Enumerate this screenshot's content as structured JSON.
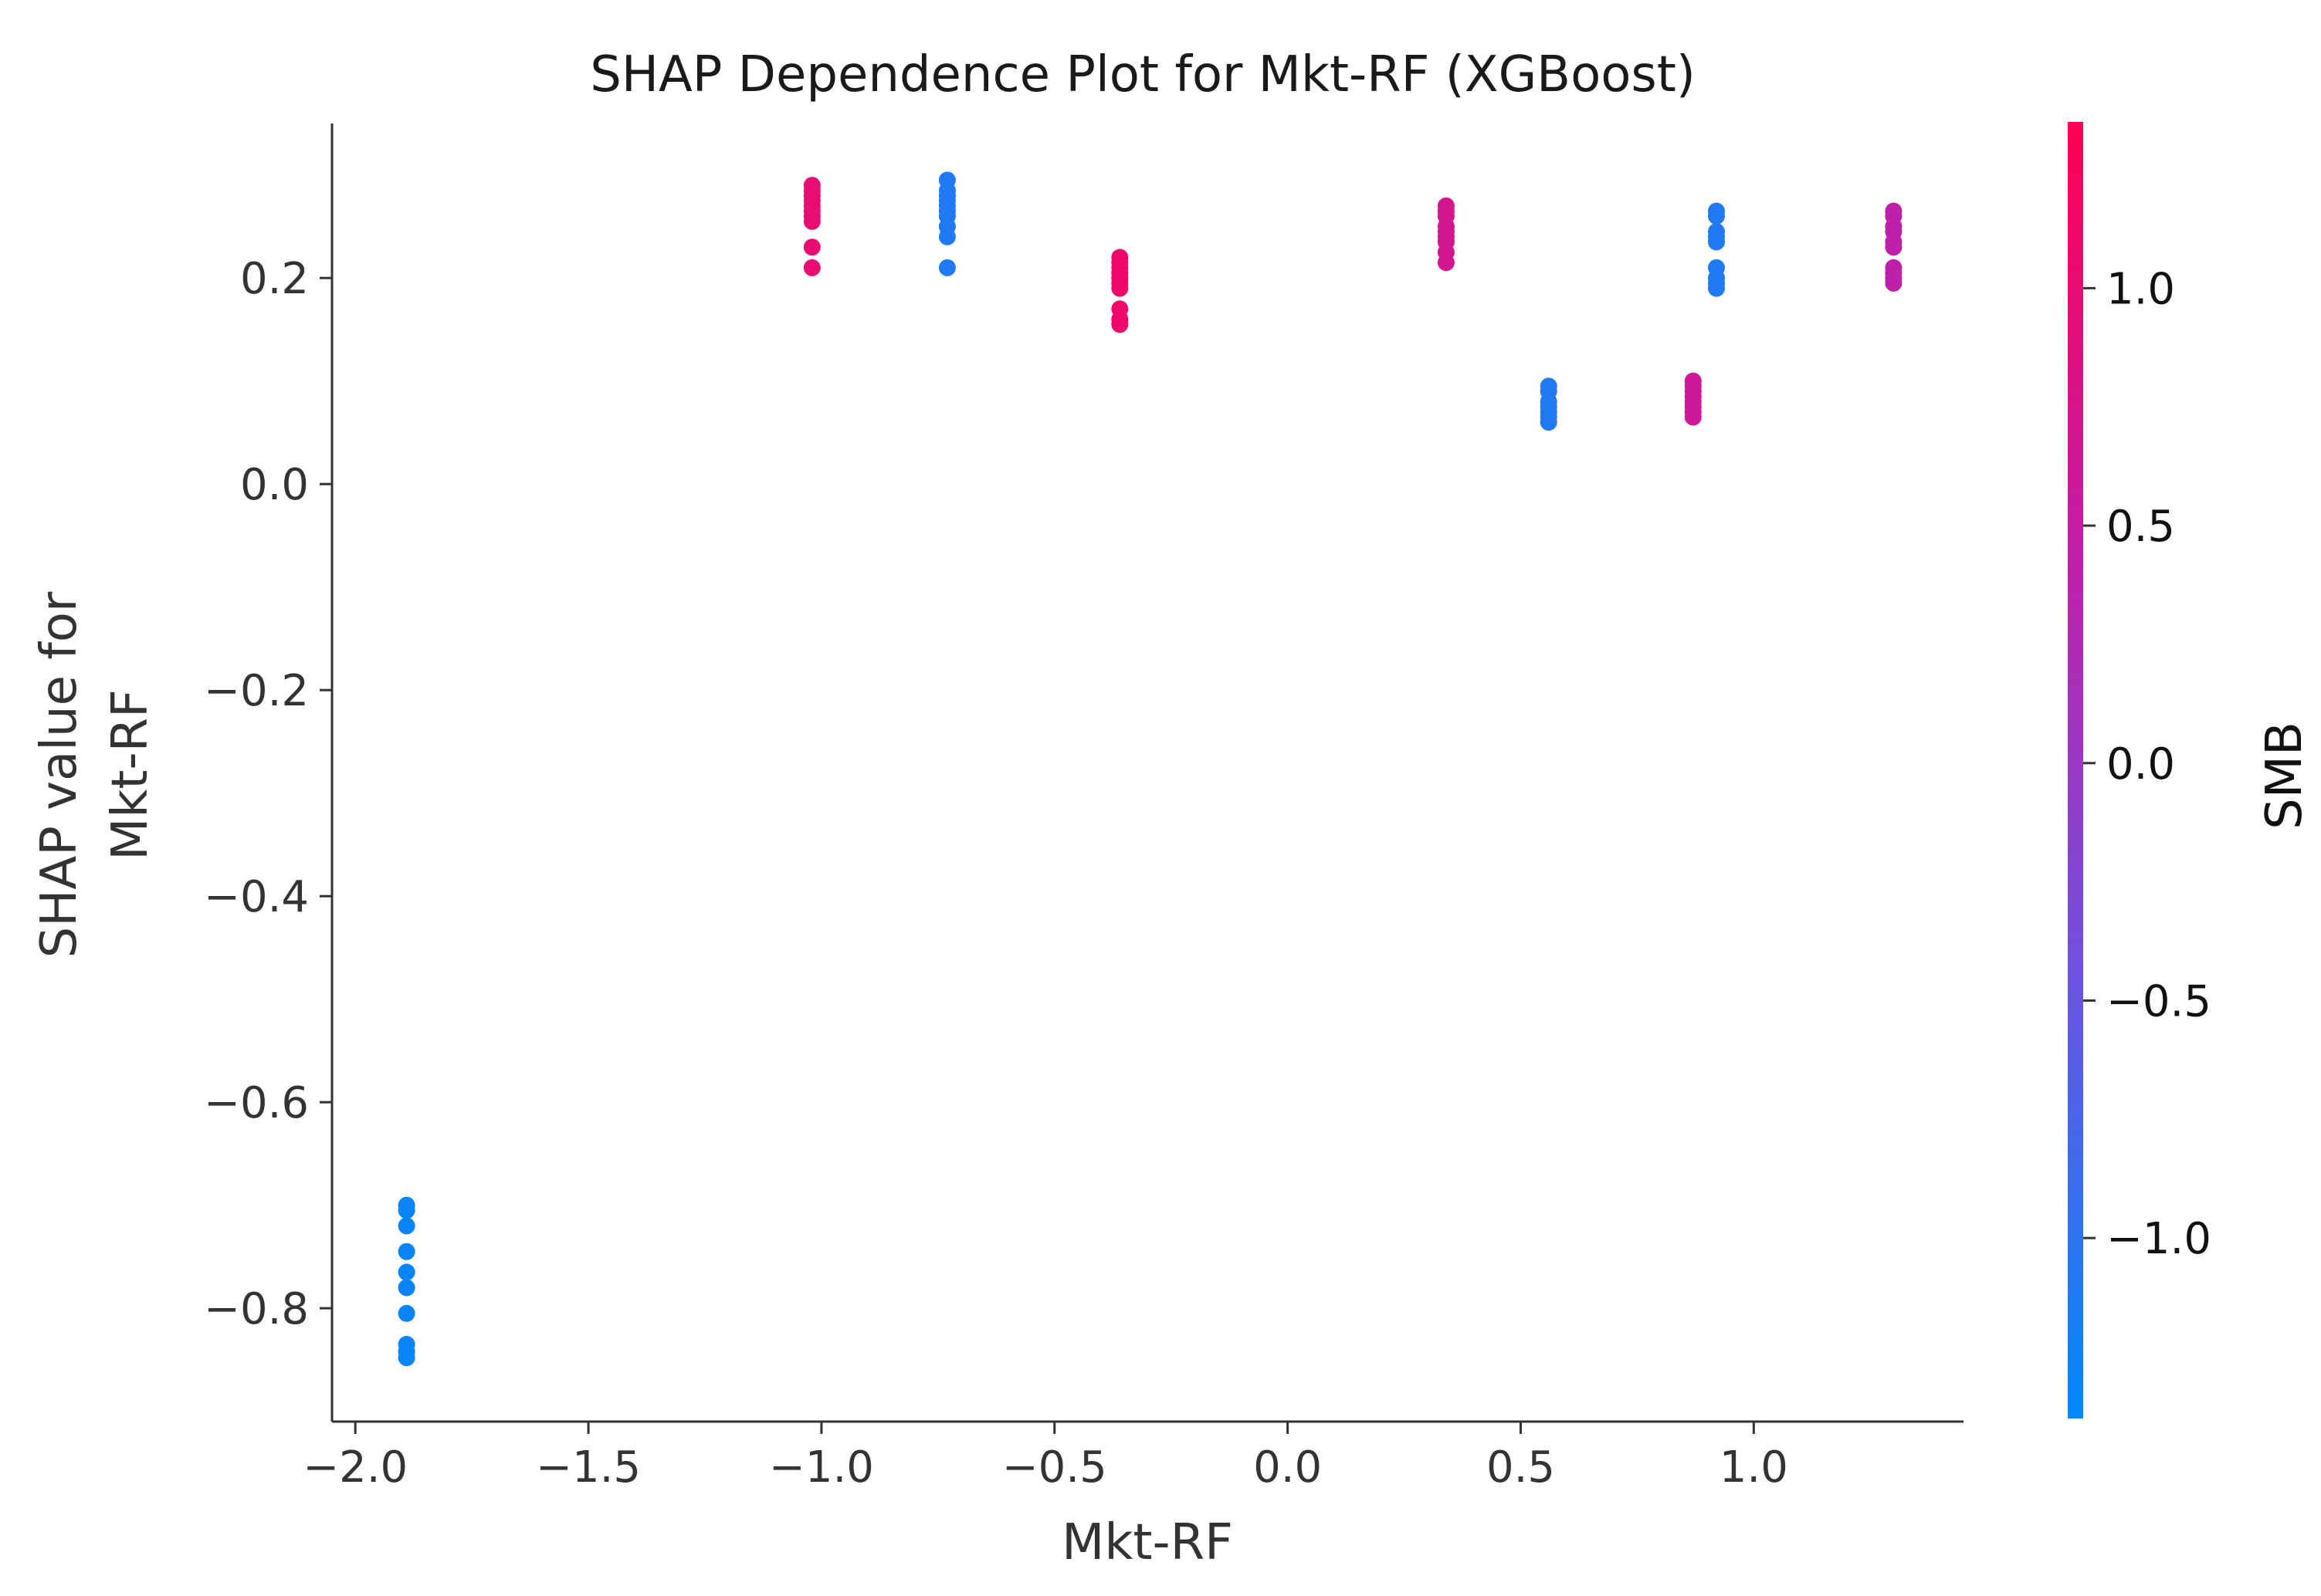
{
  "chart_data": {
    "type": "scatter",
    "title": "SHAP Dependence Plot for Mkt-RF (XGBoost)",
    "xlabel": "Mkt-RF",
    "ylabel_lines": [
      "SHAP value for",
      "Mkt-RF"
    ],
    "xlim": [
      -2.05,
      1.45
    ],
    "ylim": [
      -0.91,
      0.35
    ],
    "xticks": [
      -2.0,
      -1.5,
      -1.0,
      -0.5,
      0.0,
      0.5,
      1.0
    ],
    "xtick_labels": [
      "−2.0",
      "−1.5",
      "−1.0",
      "−0.5",
      "0.0",
      "0.5",
      "1.0"
    ],
    "yticks": [
      0.2,
      0.0,
      -0.2,
      -0.4,
      -0.6,
      -0.8
    ],
    "ytick_labels": [
      "0.2",
      "0.0",
      "−0.2",
      "−0.4",
      "−0.6",
      "−0.8"
    ],
    "grid": false,
    "colorbar": {
      "label": "SMB",
      "range": [
        -1.38,
        1.35
      ],
      "ticks": [
        1.0,
        0.5,
        0.0,
        -0.5,
        -1.0
      ],
      "tick_labels": [
        "1.0",
        "0.5",
        "0.0",
        "−0.5",
        "−1.0"
      ],
      "colors": [
        "#008afb",
        "#6b54e0",
        "#c21ea8",
        "#ff0052"
      ]
    },
    "groups": [
      {
        "x": -1.89,
        "smb": -1.3,
        "y": [
          -0.7,
          -0.705,
          -0.72,
          -0.745,
          -0.765,
          -0.78,
          -0.805,
          -0.835,
          -0.842,
          -0.848
        ]
      },
      {
        "x": -1.02,
        "smb": 1.0,
        "y": [
          0.29,
          0.285,
          0.28,
          0.275,
          0.27,
          0.265,
          0.26,
          0.255,
          0.23,
          0.21
        ]
      },
      {
        "x": -0.73,
        "smb": -1.1,
        "y": [
          0.295,
          0.285,
          0.28,
          0.275,
          0.27,
          0.265,
          0.26,
          0.25,
          0.24,
          0.21
        ]
      },
      {
        "x": -0.36,
        "smb": 1.1,
        "y": [
          0.22,
          0.215,
          0.21,
          0.205,
          0.2,
          0.195,
          0.19,
          0.17,
          0.16,
          0.155
        ]
      },
      {
        "x": 0.34,
        "smb": 0.7,
        "y": [
          0.27,
          0.265,
          0.26,
          0.25,
          0.245,
          0.24,
          0.235,
          0.225,
          0.215
        ]
      },
      {
        "x": 0.56,
        "smb": -1.1,
        "y": [
          0.095,
          0.09,
          0.08,
          0.075,
          0.07,
          0.065,
          0.06
        ]
      },
      {
        "x": 0.87,
        "smb": 0.6,
        "y": [
          0.1,
          0.095,
          0.09,
          0.085,
          0.08,
          0.075,
          0.07,
          0.065
        ]
      },
      {
        "x": 0.92,
        "smb": -1.1,
        "y": [
          0.265,
          0.26,
          0.245,
          0.24,
          0.235,
          0.21,
          0.2,
          0.195,
          0.19
        ]
      },
      {
        "x": 1.3,
        "smb": 0.4,
        "y": [
          0.265,
          0.26,
          0.25,
          0.245,
          0.235,
          0.23,
          0.21,
          0.205,
          0.2,
          0.195
        ]
      }
    ]
  }
}
